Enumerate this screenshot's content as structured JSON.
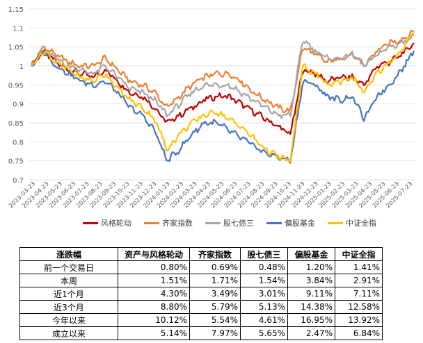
{
  "chart_data": {
    "type": "line",
    "ylim": [
      0.7,
      1.15
    ],
    "y_ticks": [
      "0.7",
      "0.75",
      "0.8",
      "0.85",
      "0.9",
      "0.95",
      "1",
      "1.05",
      "1.1",
      "1.15"
    ],
    "x_ticks": [
      "2023-03-23",
      "2023-04-23",
      "2023-05-23",
      "2023-06-23",
      "2023-07-23",
      "2023-08-23",
      "2023-09-23",
      "2023-10-23",
      "2023-11-23",
      "2023-12-23",
      "2024-01-23",
      "2024-02-23",
      "2024-03-23",
      "2024-04-23",
      "2024-05-23",
      "2024-06-23",
      "2024-07-23",
      "2024-08-23",
      "2024-09-23",
      "2024-10-23",
      "2024-11-23",
      "2024-12-23",
      "2025-01-23",
      "2025-02-23",
      "2025-03-23",
      "2025-04-23",
      "2025-05-23",
      "2025-06-23",
      "2025-07-23"
    ],
    "series": [
      {
        "name": "风格轮动",
        "color": "#C00000",
        "values": [
          1.0,
          1.04,
          1.01,
          0.99,
          0.98,
          0.97,
          0.99,
          0.96,
          0.93,
          0.92,
          0.89,
          0.85,
          0.87,
          0.89,
          0.91,
          0.92,
          0.92,
          0.9,
          0.88,
          0.86,
          0.84,
          0.82,
          0.99,
          0.98,
          0.96,
          0.97,
          0.97,
          0.95,
          1.0,
          1.01,
          1.03,
          1.06
        ]
      },
      {
        "name": "齐家指数",
        "color": "#ED7D31",
        "values": [
          1.0,
          1.05,
          1.03,
          1.01,
          1.0,
          1.0,
          1.02,
          0.99,
          0.96,
          0.95,
          0.93,
          0.89,
          0.92,
          0.95,
          0.97,
          0.98,
          0.98,
          0.96,
          0.93,
          0.91,
          0.89,
          0.88,
          1.05,
          1.03,
          1.01,
          1.02,
          1.03,
          1.0,
          1.04,
          1.06,
          1.07,
          1.09
        ]
      },
      {
        "name": "股七债三",
        "color": "#A5A5A5",
        "values": [
          1.0,
          1.04,
          1.02,
          1.0,
          0.99,
          0.98,
          1.0,
          0.97,
          0.94,
          0.93,
          0.91,
          0.87,
          0.9,
          0.93,
          0.95,
          0.95,
          0.95,
          0.93,
          0.91,
          0.89,
          0.87,
          0.87,
          1.07,
          1.04,
          1.02,
          1.02,
          1.03,
          1.0,
          1.03,
          1.05,
          1.06,
          1.08
        ]
      },
      {
        "name": "偏股基金",
        "color": "#4472C4",
        "values": [
          1.0,
          1.04,
          1.0,
          0.98,
          0.96,
          0.95,
          0.96,
          0.93,
          0.89,
          0.87,
          0.83,
          0.75,
          0.78,
          0.82,
          0.85,
          0.85,
          0.83,
          0.81,
          0.79,
          0.77,
          0.76,
          0.75,
          0.96,
          0.95,
          0.92,
          0.91,
          0.92,
          0.86,
          0.92,
          0.95,
          0.99,
          1.04
        ]
      },
      {
        "name": "中证全指",
        "color": "#FFC000",
        "values": [
          1.0,
          1.04,
          1.01,
          0.99,
          0.97,
          0.96,
          0.98,
          0.94,
          0.91,
          0.89,
          0.86,
          0.78,
          0.82,
          0.85,
          0.87,
          0.88,
          0.86,
          0.84,
          0.81,
          0.78,
          0.76,
          0.75,
          1.0,
          0.98,
          0.95,
          0.96,
          0.97,
          0.93,
          0.98,
          1.01,
          1.04,
          1.09
        ]
      }
    ]
  },
  "table": {
    "headers": [
      "涨跌幅",
      "资产与风格轮动",
      "齐家指数",
      "股七债三",
      "偏股基金",
      "中证全指"
    ],
    "rows": [
      [
        "前一个交易日",
        "0.80%",
        "0.69%",
        "0.48%",
        "1.20%",
        "1.41%"
      ],
      [
        "本周",
        "1.51%",
        "1.71%",
        "1.54%",
        "3.84%",
        "2.91%"
      ],
      [
        "近1个月",
        "4.30%",
        "3.49%",
        "3.01%",
        "9.11%",
        "7.11%"
      ],
      [
        "近3个月",
        "8.80%",
        "5.79%",
        "5.13%",
        "14.38%",
        "12.58%"
      ],
      [
        "今年以来",
        "10.12%",
        "5.54%",
        "4.61%",
        "16.95%",
        "13.92%"
      ],
      [
        "成立以来",
        "5.14%",
        "7.97%",
        "5.65%",
        "2.47%",
        "6.84%"
      ]
    ]
  }
}
